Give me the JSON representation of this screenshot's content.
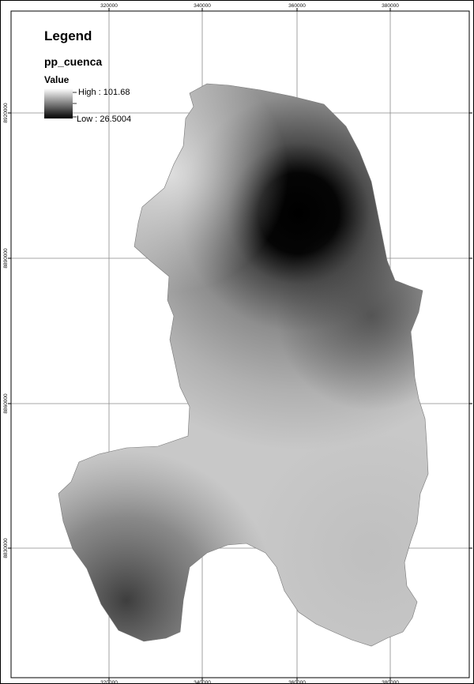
{
  "map": {
    "legend": {
      "title": "Legend",
      "layer_name": "pp_cuenca",
      "field_name": "Value",
      "high_label": "High : 101.68",
      "low_label": "Low : 26.5004",
      "high_value": 101.68,
      "low_value": 26.5004,
      "color_ramp": [
        "#ffffff",
        "#000000"
      ]
    },
    "x_ticks": [
      "320000",
      "340000",
      "360000",
      "380000"
    ],
    "y_ticks": [
      "8920000",
      "8890000",
      "8860000",
      "8830000"
    ],
    "raster_colors": {
      "dark_core": "#000000",
      "mid": "#9a9a9a",
      "light": "#d8d8d8",
      "southwest": "#4a4a4a"
    }
  }
}
